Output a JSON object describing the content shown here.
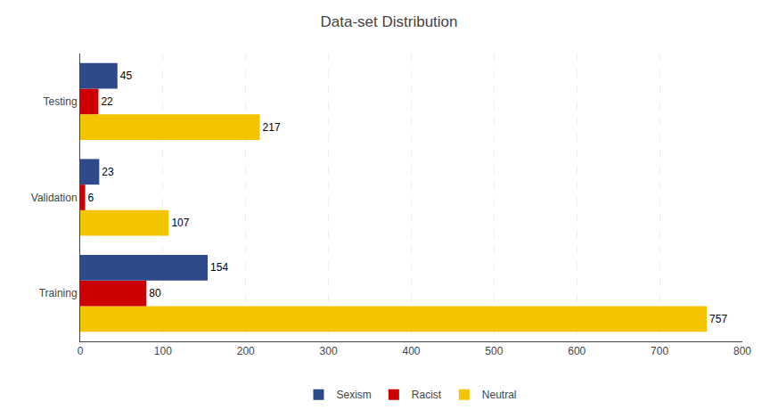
{
  "chart_data": {
    "type": "bar",
    "orientation": "horizontal",
    "title": "Data-set Distribution",
    "categories": [
      "Training",
      "Validation",
      "Testing"
    ],
    "series": [
      {
        "name": "Sexism",
        "color": "#2E4A8B",
        "values": [
          154,
          23,
          45
        ]
      },
      {
        "name": "Racist",
        "color": "#CC0000",
        "values": [
          80,
          6,
          22
        ]
      },
      {
        "name": "Neutral",
        "color": "#F5C400",
        "values": [
          757,
          107,
          217
        ]
      }
    ],
    "xlim": [
      0,
      800
    ],
    "xticks": [
      0,
      100,
      200,
      300,
      400,
      500,
      600,
      700,
      800
    ],
    "grid": true,
    "legend": "bottom",
    "data_labels": true
  }
}
